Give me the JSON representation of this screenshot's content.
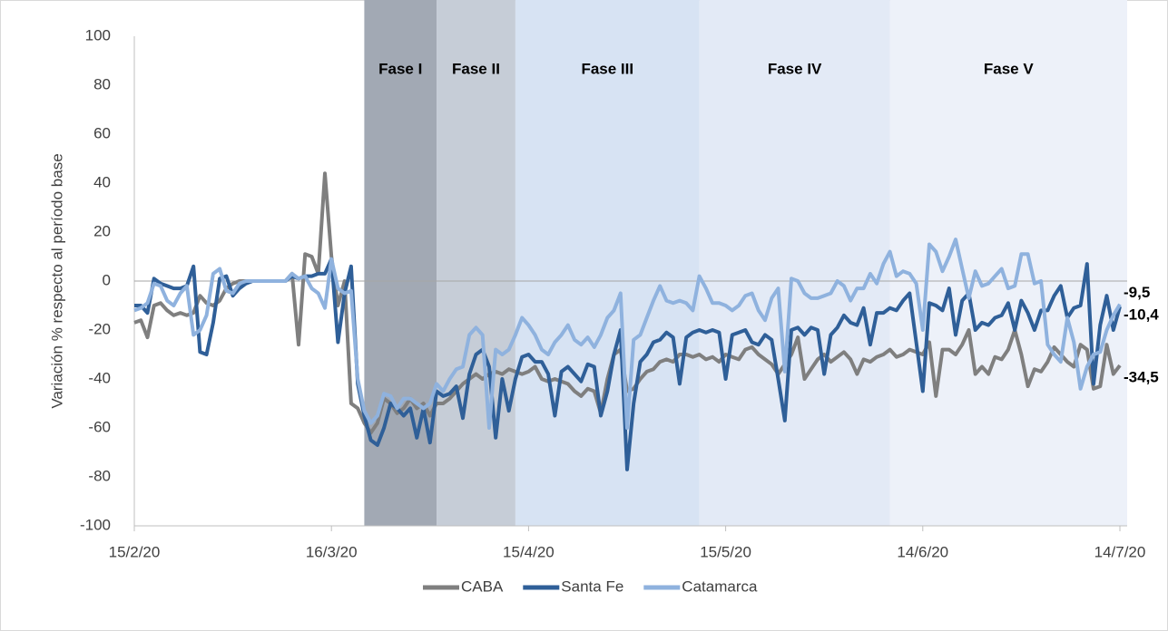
{
  "chart_data": {
    "type": "line",
    "ylabel": "Variación % respecto al período base",
    "x": [
      "15/2/20",
      "16/2/20",
      "17/2/20",
      "18/2/20",
      "19/2/20",
      "20/2/20",
      "21/2/20",
      "22/2/20",
      "23/2/20",
      "24/2/20",
      "25/2/20",
      "26/2/20",
      "27/2/20",
      "28/2/20",
      "29/2/20",
      "1/3/20",
      "2/3/20",
      "3/3/20",
      "4/3/20",
      "5/3/20",
      "6/3/20",
      "7/3/20",
      "8/3/20",
      "9/3/20",
      "10/3/20",
      "11/3/20",
      "12/3/20",
      "13/3/20",
      "14/3/20",
      "15/3/20",
      "16/3/20",
      "17/3/20",
      "18/3/20",
      "19/3/20",
      "20/3/20",
      "21/3/20",
      "22/3/20",
      "23/3/20",
      "24/3/20",
      "25/3/20",
      "26/3/20",
      "27/3/20",
      "28/3/20",
      "29/3/20",
      "30/3/20",
      "31/3/20",
      "1/4/20",
      "2/4/20",
      "3/4/20",
      "4/4/20",
      "5/4/20",
      "6/4/20",
      "7/4/20",
      "8/4/20",
      "9/4/20",
      "10/4/20",
      "11/4/20",
      "12/4/20",
      "13/4/20",
      "14/4/20",
      "15/4/20",
      "16/4/20",
      "17/4/20",
      "18/4/20",
      "19/4/20",
      "20/4/20",
      "21/4/20",
      "22/4/20",
      "23/4/20",
      "24/4/20",
      "25/4/20",
      "26/4/20",
      "27/4/20",
      "28/4/20",
      "29/4/20",
      "30/4/20",
      "1/5/20",
      "2/5/20",
      "3/5/20",
      "4/5/20",
      "5/5/20",
      "6/5/20",
      "7/5/20",
      "8/5/20",
      "9/5/20",
      "10/5/20",
      "11/5/20",
      "12/5/20",
      "13/5/20",
      "14/5/20",
      "15/5/20",
      "16/5/20",
      "17/5/20",
      "18/5/20",
      "19/5/20",
      "20/5/20",
      "21/5/20",
      "22/5/20",
      "23/5/20",
      "24/5/20",
      "25/5/20",
      "26/5/20",
      "27/5/20",
      "28/5/20",
      "29/5/20",
      "30/5/20",
      "31/5/20",
      "1/6/20",
      "2/6/20",
      "3/6/20",
      "4/6/20",
      "5/6/20",
      "6/6/20",
      "7/6/20",
      "8/6/20",
      "9/6/20",
      "10/6/20",
      "11/6/20",
      "12/6/20",
      "13/6/20",
      "14/6/20",
      "15/6/20",
      "16/6/20",
      "17/6/20",
      "18/6/20",
      "19/6/20",
      "20/6/20",
      "21/6/20",
      "22/6/20",
      "23/6/20",
      "24/6/20",
      "25/6/20",
      "26/6/20",
      "27/6/20",
      "28/6/20",
      "29/6/20",
      "30/6/20",
      "1/7/20",
      "2/7/20",
      "3/7/20",
      "4/7/20",
      "5/7/20",
      "6/7/20",
      "7/7/20",
      "8/7/20",
      "9/7/20",
      "10/7/20",
      "11/7/20",
      "12/7/20",
      "13/7/20",
      "14/7/20"
    ],
    "xticks": [
      "15/2/20",
      "16/3/20",
      "15/4/20",
      "15/5/20",
      "14/6/20",
      "14/7/20"
    ],
    "ylim": [
      -100,
      100
    ],
    "yticks": [
      -100,
      -80,
      -60,
      -40,
      -20,
      0,
      20,
      40,
      60,
      80,
      100
    ],
    "legend": "bottom",
    "phases": [
      {
        "label": "Fase I",
        "start": "21/3/20",
        "end": "1/4/20",
        "color": "#a2a9b4"
      },
      {
        "label": "Fase II",
        "start": "1/4/20",
        "end": "13/4/20",
        "color": "#c6cdd7"
      },
      {
        "label": "Fase III",
        "start": "13/4/20",
        "end": "11/5/20",
        "color": "#d7e3f3"
      },
      {
        "label": "Fase IV",
        "start": "11/5/20",
        "end": "9/6/20",
        "color": "#e3eaf6"
      },
      {
        "label": "Fase V",
        "start": "9/6/20",
        "end": "14/7/20",
        "color": "#edf1f9"
      }
    ],
    "series": [
      {
        "name": "CABA",
        "color": "#7f7f7f",
        "end_label": "-34,5",
        "values": [
          -17,
          -16,
          -23,
          -10,
          -9,
          -12,
          -14,
          -13,
          -14,
          -13,
          -6,
          -9,
          -10,
          -8,
          -3,
          -1,
          0,
          0,
          0,
          0,
          0,
          0,
          0,
          0,
          3,
          -26,
          11,
          10,
          3,
          44,
          10,
          -10,
          0,
          -50,
          -52,
          -58,
          -62,
          -58,
          -48,
          -50,
          -54,
          -52,
          -48,
          -52,
          -50,
          -55,
          -50,
          -50,
          -48,
          -45,
          -42,
          -40,
          -38,
          -40,
          -38,
          -37,
          -38,
          -36,
          -37,
          -38,
          -37,
          -35,
          -40,
          -41,
          -40,
          -41,
          -42,
          -45,
          -47,
          -44,
          -45,
          -54,
          -40,
          -30,
          -28,
          -45,
          -44,
          -40,
          -37,
          -36,
          -33,
          -32,
          -33,
          -30,
          -30,
          -31,
          -30,
          -32,
          -31,
          -33,
          -30,
          -31,
          -32,
          -28,
          -27,
          -30,
          -32,
          -34,
          -38,
          -34,
          -30,
          -23,
          -40,
          -36,
          -32,
          -30,
          -33,
          -31,
          -29,
          -32,
          -38,
          -32,
          -33,
          -31,
          -30,
          -28,
          -31,
          -30,
          -28,
          -29,
          -30,
          -25,
          -47,
          -28,
          -28,
          -30,
          -26,
          -20,
          -38,
          -35,
          -38,
          -31,
          -32,
          -28,
          -20,
          -30,
          -43,
          -36,
          -37,
          -33,
          -27,
          -30,
          -33,
          -35,
          -26,
          -28,
          -44,
          -43,
          -26,
          -38,
          -34.5
        ]
      },
      {
        "name": "Santa Fe",
        "color": "#2f5f98",
        "end_label": "-10,4",
        "values": [
          -10,
          -10,
          -13,
          1,
          -1,
          -2,
          -3,
          -3,
          -2,
          6,
          -29,
          -30,
          -17,
          1,
          2,
          -6,
          -3,
          -1,
          0,
          0,
          0,
          0,
          0,
          0,
          2,
          1,
          2,
          2,
          3,
          3,
          9,
          -25,
          -5,
          6,
          -42,
          -55,
          -65,
          -67,
          -60,
          -50,
          -52,
          -55,
          -52,
          -64,
          -52,
          -66,
          -45,
          -47,
          -46,
          -43,
          -56,
          -38,
          -30,
          -28,
          -35,
          -64,
          -40,
          -53,
          -40,
          -31,
          -30,
          -33,
          -33,
          -38,
          -55,
          -37,
          -35,
          -38,
          -41,
          -34,
          -35,
          -55,
          -45,
          -30,
          -20,
          -77,
          -50,
          -33,
          -30,
          -25,
          -24,
          -21,
          -23,
          -42,
          -23,
          -21,
          -20,
          -21,
          -20,
          -21,
          -40,
          -22,
          -21,
          -20,
          -25,
          -26,
          -22,
          -24,
          -40,
          -57,
          -20,
          -19,
          -22,
          -19,
          -20,
          -38,
          -22,
          -19,
          -14,
          -17,
          -18,
          -11,
          -26,
          -13,
          -13,
          -11,
          -12,
          -8,
          -5,
          -25,
          -45,
          -9,
          -10,
          -12,
          -3,
          -22,
          -8,
          -5,
          -20,
          -17,
          -18,
          -15,
          -14,
          -9,
          -20,
          -8,
          -13,
          -20,
          -12,
          -12,
          -6,
          -2,
          -15,
          -11,
          -10,
          7,
          -42,
          -18,
          -6,
          -20,
          -10.4
        ]
      },
      {
        "name": "Catamarca",
        "color": "#8fb2de",
        "end_label": "-9,5",
        "values": [
          -12,
          -11,
          -9,
          -1,
          -2,
          -8,
          -10,
          -5,
          -2,
          -22,
          -20,
          -14,
          3,
          5,
          -4,
          -5,
          -1,
          0,
          0,
          0,
          0,
          0,
          0,
          0,
          3,
          1,
          2,
          -3,
          -5,
          -11,
          9,
          -3,
          -5,
          -4,
          -40,
          -53,
          -58,
          -55,
          -46,
          -47,
          -52,
          -48,
          -48,
          -50,
          -52,
          -50,
          -42,
          -45,
          -40,
          -36,
          -35,
          -22,
          -19,
          -22,
          -60,
          -28,
          -30,
          -28,
          -22,
          -15,
          -18,
          -22,
          -28,
          -30,
          -25,
          -22,
          -18,
          -24,
          -26,
          -23,
          -27,
          -22,
          -15,
          -12,
          -5,
          -60,
          -24,
          -22,
          -15,
          -8,
          -2,
          -8,
          -9,
          -8,
          -9,
          -12,
          2,
          -3,
          -9,
          -9,
          -10,
          -12,
          -10,
          -6,
          -5,
          -12,
          -16,
          -7,
          -3,
          -37,
          1,
          0,
          -5,
          -7,
          -7,
          -6,
          -5,
          0,
          -2,
          -8,
          -3,
          -3,
          3,
          -1,
          7,
          12,
          2,
          4,
          3,
          -1,
          -20,
          15,
          12,
          4,
          10,
          17,
          5,
          -7,
          4,
          -2,
          -1,
          2,
          5,
          -3,
          -2,
          11,
          11,
          -1,
          0,
          -26,
          -30,
          -33,
          -15,
          -25,
          -44,
          -35,
          -30,
          -29,
          -20,
          -14,
          -9.5
        ]
      }
    ]
  }
}
